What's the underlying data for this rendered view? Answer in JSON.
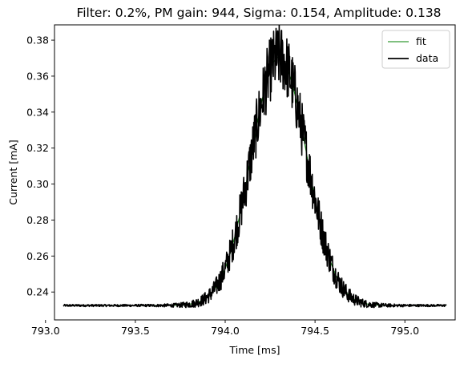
{
  "chart_data": {
    "type": "line",
    "title": "Filter: 0.2%, PM gain: 944, Sigma: 0.154, Amplitude: 0.138",
    "xlabel": "Time [ms]",
    "ylabel": "Current [mA]",
    "xlim": [
      793.05,
      795.28
    ],
    "ylim": [
      0.2245,
      0.3885
    ],
    "xticks": [
      793.0,
      793.5,
      794.0,
      794.5,
      795.0
    ],
    "xtick_labels": [
      "793.0",
      "793.5",
      "794.0",
      "794.5",
      "795.0"
    ],
    "yticks": [
      0.24,
      0.26,
      0.28,
      0.3,
      0.32,
      0.34,
      0.36,
      0.38
    ],
    "ytick_labels": [
      "0.24",
      "0.26",
      "0.28",
      "0.30",
      "0.32",
      "0.34",
      "0.36",
      "0.38"
    ],
    "grid": false,
    "legend_position": "top-right",
    "x_start": 793.1,
    "x_end": 795.23,
    "series": [
      {
        "name": "fit",
        "color": "#008000",
        "model": "gaussian",
        "baseline": 0.2325,
        "amplitude": 0.138,
        "center": 794.3,
        "sigma": 0.154
      },
      {
        "name": "data",
        "color": "#000000",
        "noise_baseline": 0.0006,
        "noise_peak": 0.018
      }
    ]
  }
}
